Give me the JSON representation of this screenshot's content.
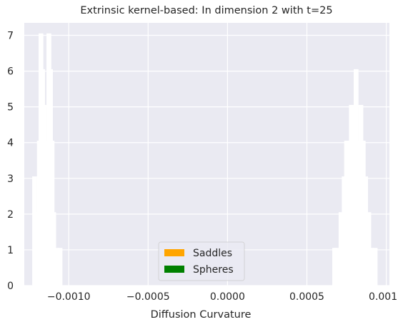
{
  "chart_data": {
    "type": "histogram",
    "title": "Extrinsic kernel-based: In dimension 2 with t=25",
    "xlabel": "Diffusion Curvature",
    "ylabel": "",
    "xlim": [
      -0.00128,
      0.00102
    ],
    "ylim": [
      0,
      7.35
    ],
    "xticks": [
      -0.001,
      -0.0005,
      0.0,
      0.0005,
      0.001
    ],
    "xtick_labels": [
      "−0.0010",
      "−0.0005",
      "0.0000",
      "0.0005",
      "0.0010"
    ],
    "yticks": [
      0,
      1,
      2,
      3,
      4,
      5,
      6,
      7
    ],
    "ytick_labels": [
      "0",
      "1",
      "2",
      "3",
      "4",
      "5",
      "6",
      "7"
    ],
    "grid": true,
    "legend_position": "lower-center",
    "series": [
      {
        "name": "Saddles",
        "color": "#ffa500",
        "bins": [
          {
            "x": -0.001215,
            "w": 6e-06,
            "h": 3
          },
          {
            "x": -0.001206,
            "w": 6e-06,
            "h": 2
          },
          {
            "x": -0.001195,
            "w": 6e-06,
            "h": 1
          },
          {
            "x": -0.001185,
            "w": 6e-06,
            "h": 4
          },
          {
            "x": -0.001175,
            "w": 6e-06,
            "h": 7
          },
          {
            "x": -0.001165,
            "w": 6e-06,
            "h": 6
          },
          {
            "x": -0.001155,
            "w": 6e-06,
            "h": 5
          },
          {
            "x": -0.001145,
            "w": 6e-06,
            "h": 4
          },
          {
            "x": -0.001135,
            "w": 6e-06,
            "h": 3
          },
          {
            "x": -0.001125,
            "w": 6e-06,
            "h": 7
          },
          {
            "x": -0.001115,
            "w": 6e-06,
            "h": 6
          },
          {
            "x": -0.001105,
            "w": 6e-06,
            "h": 4
          },
          {
            "x": -0.001095,
            "w": 6e-06,
            "h": 2
          },
          {
            "x": -0.001075,
            "w": 6e-06,
            "h": 1
          },
          {
            "x": -0.001055,
            "w": 6e-06,
            "h": 1
          },
          {
            "x": 0.000675,
            "w": 6e-06,
            "h": 1
          },
          {
            "x": 0.00069,
            "w": 6e-06,
            "h": 1
          },
          {
            "x": 0.000715,
            "w": 6e-06,
            "h": 2
          },
          {
            "x": 0.000735,
            "w": 6e-06,
            "h": 3
          },
          {
            "x": 0.00075,
            "w": 6e-06,
            "h": 4
          },
          {
            "x": 0.000765,
            "w": 6e-06,
            "h": 3
          },
          {
            "x": 0.00078,
            "w": 6e-06,
            "h": 5
          },
          {
            "x": 0.000795,
            "w": 6e-06,
            "h": 3
          },
          {
            "x": 0.00081,
            "w": 6e-06,
            "h": 6
          },
          {
            "x": 0.000825,
            "w": 6e-06,
            "h": 4
          },
          {
            "x": 0.00084,
            "w": 6e-06,
            "h": 5
          },
          {
            "x": 0.000855,
            "w": 6e-06,
            "h": 4
          },
          {
            "x": 0.00087,
            "w": 6e-06,
            "h": 3
          },
          {
            "x": 0.00089,
            "w": 6e-06,
            "h": 2
          },
          {
            "x": 0.000905,
            "w": 6e-06,
            "h": 1
          },
          {
            "x": 0.00093,
            "w": 6e-06,
            "h": 1
          }
        ]
      },
      {
        "name": "Spheres",
        "color": "#008000",
        "bins": []
      }
    ]
  },
  "legend": {
    "items": [
      {
        "label": "Saddles",
        "color": "#ffa500"
      },
      {
        "label": "Spheres",
        "color": "#008000"
      }
    ]
  },
  "colors": {
    "axes_bg": "#eaeaf2",
    "grid": "#ffffff",
    "bar_edge": "#ffffff"
  }
}
